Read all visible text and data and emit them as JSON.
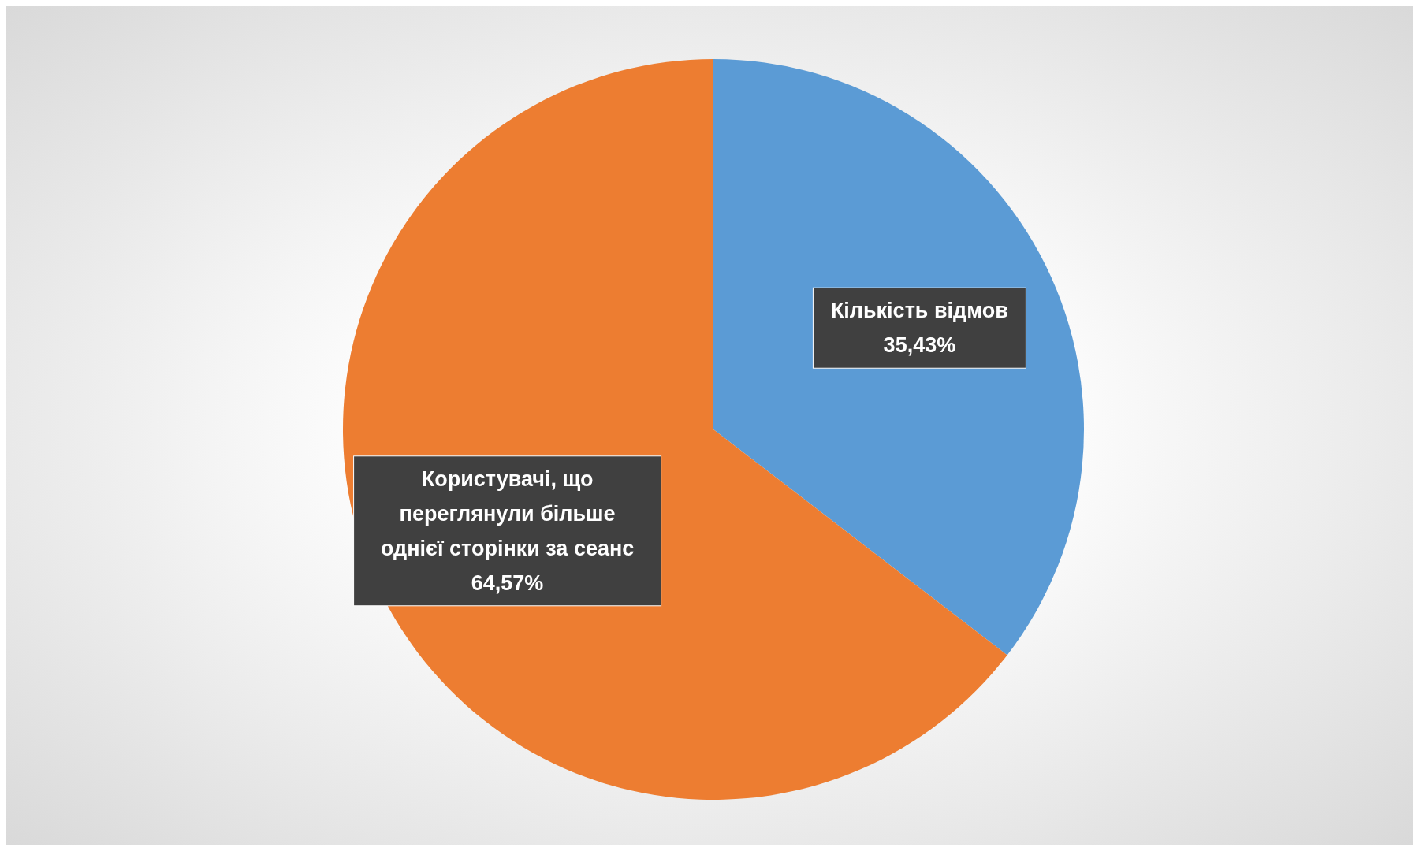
{
  "chart_data": {
    "type": "pie",
    "categories": [
      "Кількість відмов",
      "Користувачі, що переглянули більше однієї сторінки за сеанс"
    ],
    "values": [
      35.43,
      64.57
    ],
    "colors": [
      "#5b9bd5",
      "#ed7d31"
    ],
    "value_labels": [
      "35,43%",
      "64,57%"
    ],
    "legend": false
  }
}
